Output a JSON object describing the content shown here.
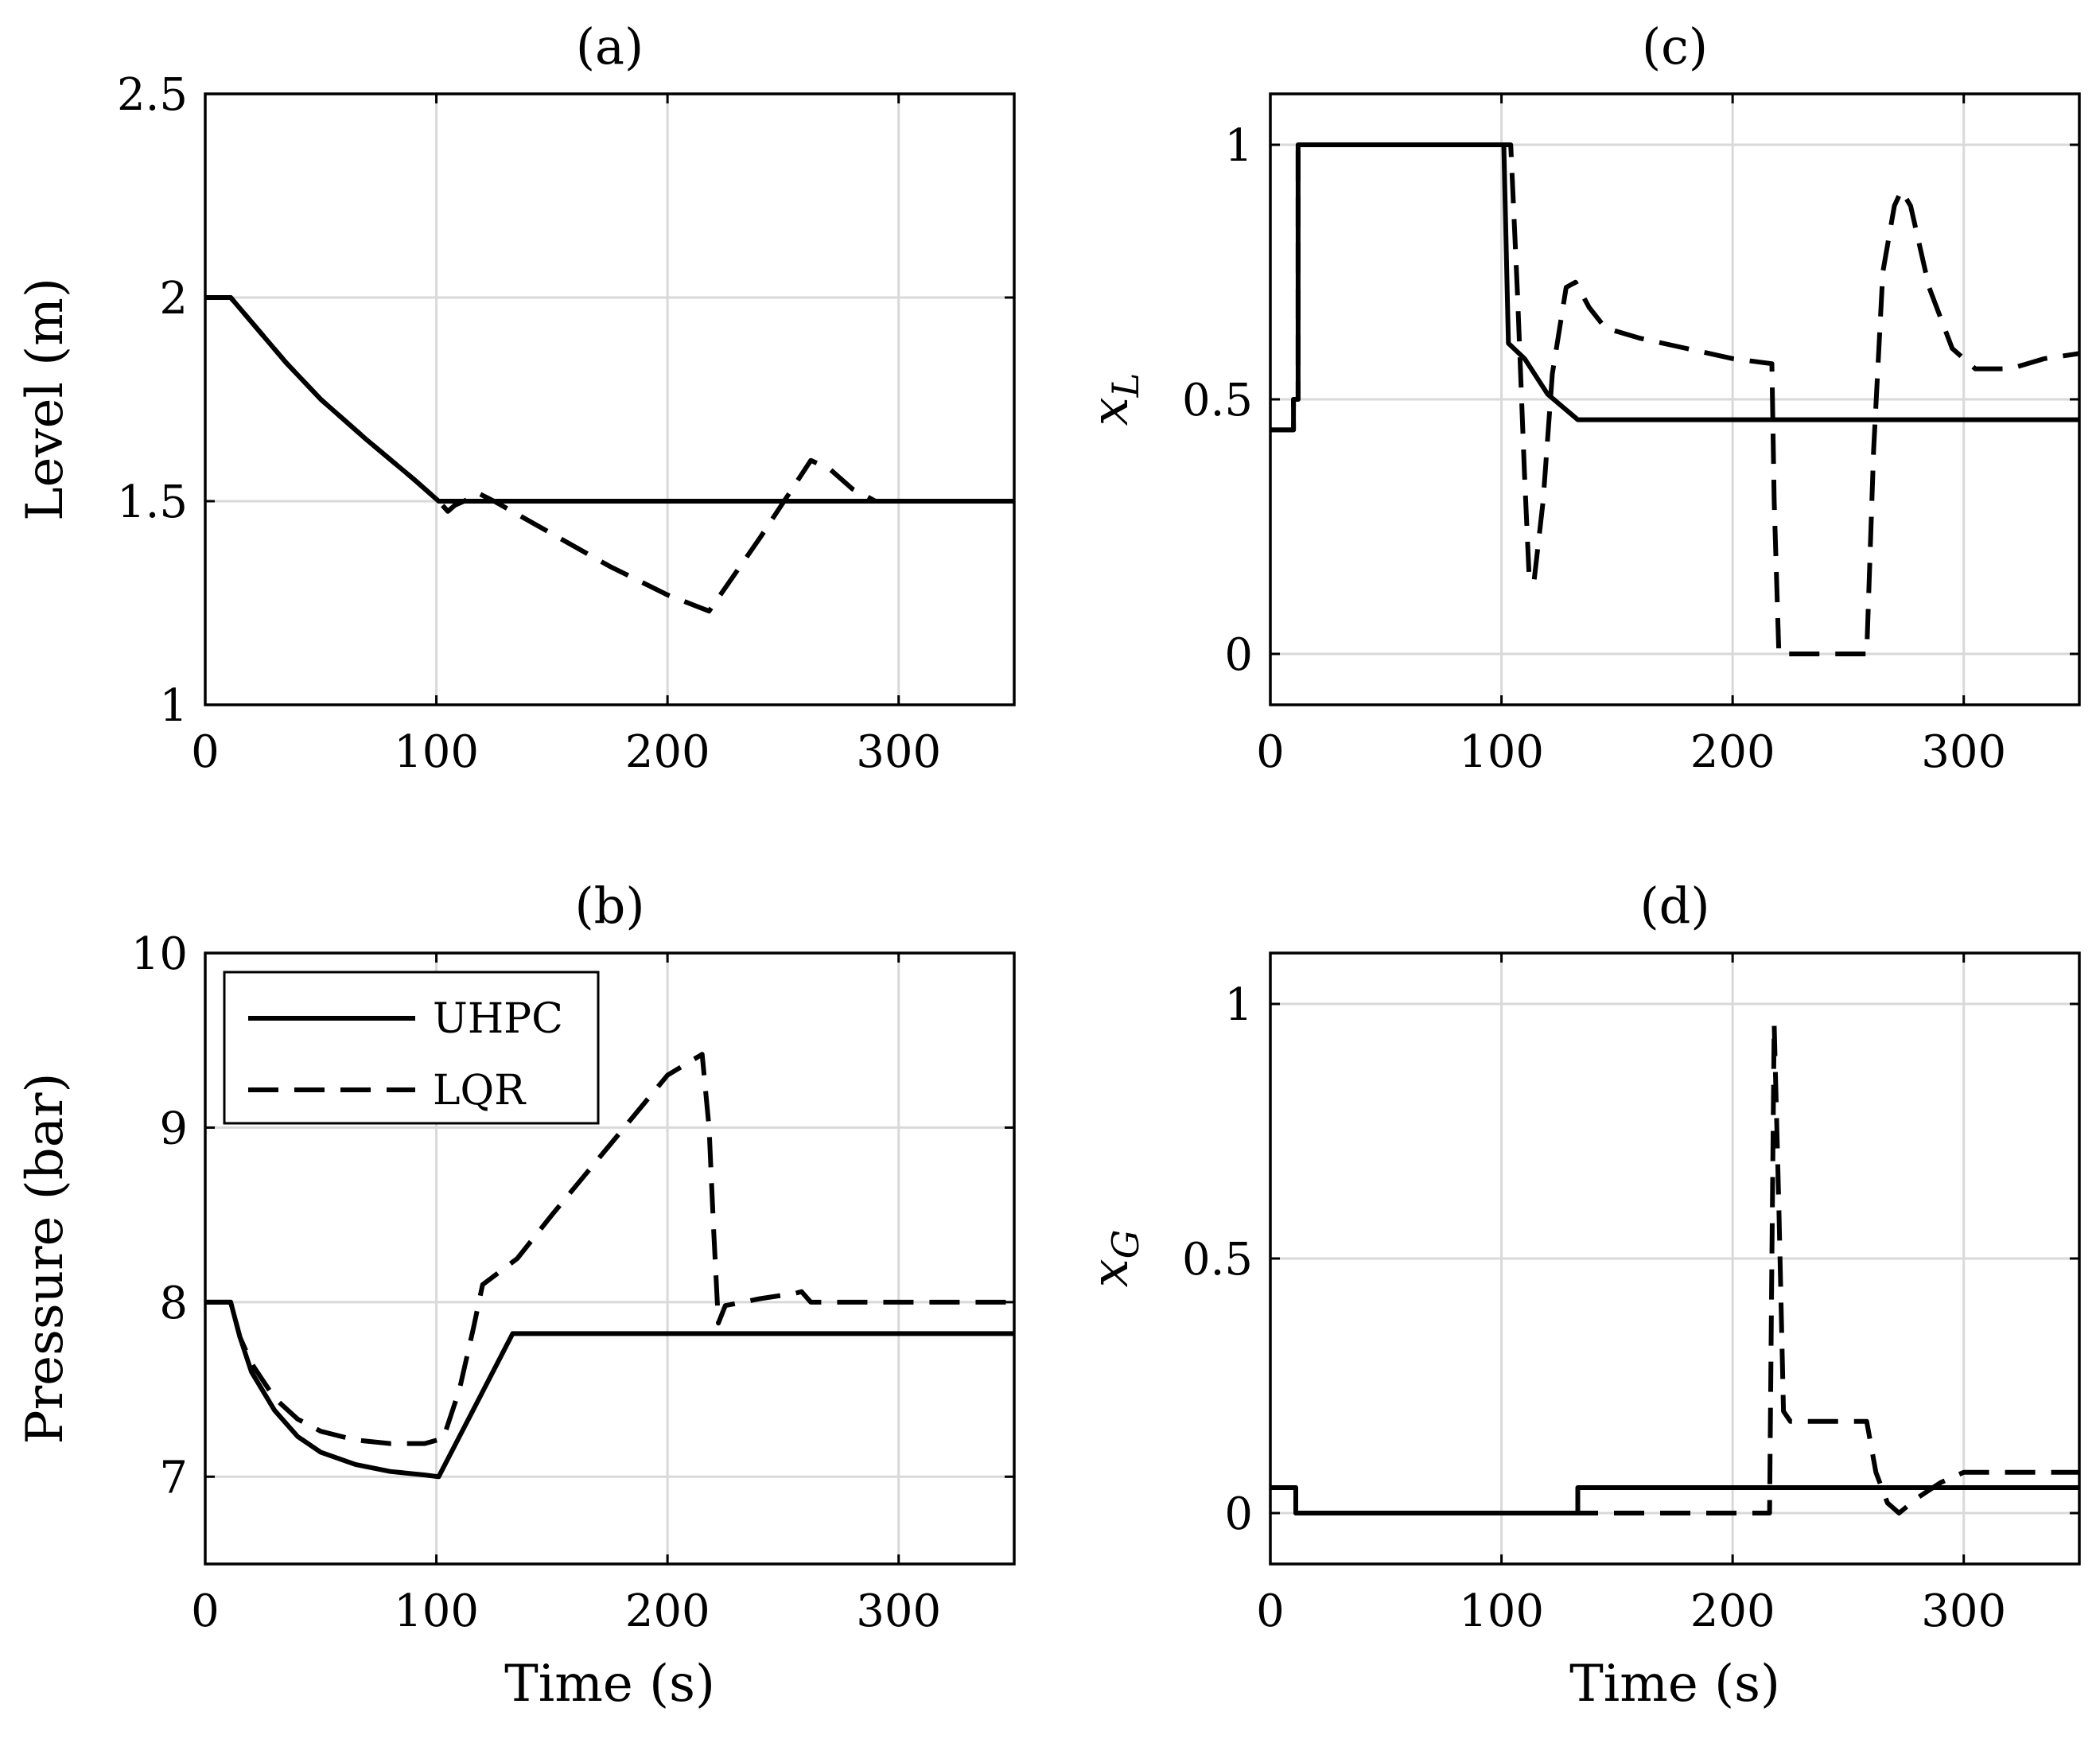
{
  "chart_data": [
    {
      "id": "a",
      "type": "line",
      "title": "(a)",
      "xlabel": "",
      "ylabel": "Level (m)",
      "ylabel_italic": false,
      "xlim": [
        0,
        350
      ],
      "ylim": [
        1,
        2.5
      ],
      "xticks": [
        0,
        100,
        200,
        300
      ],
      "yticks": [
        1,
        1.5,
        2,
        2.5
      ],
      "xtick_labels": [
        "0",
        "100",
        "200",
        "300"
      ],
      "ytick_labels": [
        "1",
        "1.5",
        "2",
        "2.5"
      ],
      "grid": true,
      "series": [
        {
          "name": "UHPC",
          "style": "solid",
          "x": [
            0,
            11,
            20,
            35,
            50,
            70,
            90,
            101,
            350
          ],
          "y": [
            2.0,
            2.0,
            1.94,
            1.84,
            1.75,
            1.65,
            1.555,
            1.5,
            1.5
          ]
        },
        {
          "name": "LQR",
          "style": "dashed",
          "x": [
            0,
            11,
            20,
            35,
            50,
            70,
            90,
            101,
            105,
            108,
            112,
            118,
            125,
            150,
            175,
            200,
            218,
            240,
            262,
            270,
            280,
            290,
            350
          ],
          "y": [
            2.0,
            2.0,
            1.94,
            1.84,
            1.75,
            1.65,
            1.555,
            1.5,
            1.475,
            1.49,
            1.5,
            1.52,
            1.5,
            1.42,
            1.34,
            1.27,
            1.23,
            1.41,
            1.6,
            1.58,
            1.53,
            1.5,
            1.5
          ]
        }
      ]
    },
    {
      "id": "b",
      "type": "line",
      "title": "(b)",
      "xlabel": "Time (s)",
      "ylabel": "Pressure (bar)",
      "ylabel_italic": false,
      "xlim": [
        0,
        350
      ],
      "ylim": [
        6.5,
        10
      ],
      "xticks": [
        0,
        100,
        200,
        300
      ],
      "yticks": [
        7,
        8,
        9,
        10
      ],
      "xtick_labels": [
        "0",
        "100",
        "200",
        "300"
      ],
      "ytick_labels": [
        "7",
        "8",
        "9",
        "10"
      ],
      "grid": true,
      "legend": {
        "location": "top-left",
        "entries": [
          {
            "label": "UHPC",
            "style": "solid"
          },
          {
            "label": "LQR",
            "style": "dashed"
          }
        ]
      },
      "series": [
        {
          "name": "UHPC",
          "style": "solid",
          "x": [
            0,
            11,
            15,
            20,
            30,
            40,
            50,
            65,
            80,
            95,
            101,
            133,
            350
          ],
          "y": [
            8.0,
            8.0,
            7.8,
            7.6,
            7.38,
            7.23,
            7.14,
            7.07,
            7.03,
            7.01,
            7.0,
            7.82,
            7.82
          ]
        },
        {
          "name": "LQR",
          "style": "dashed",
          "x": [
            0,
            11,
            15,
            20,
            30,
            40,
            50,
            65,
            80,
            95,
            103,
            110,
            116,
            120,
            130,
            135,
            150,
            175,
            200,
            215,
            218,
            220,
            222,
            225,
            240,
            255,
            258,
            262,
            350
          ],
          "y": [
            8.0,
            8.0,
            7.8,
            7.65,
            7.45,
            7.33,
            7.26,
            7.21,
            7.19,
            7.19,
            7.22,
            7.5,
            7.85,
            8.1,
            8.2,
            8.25,
            8.5,
            8.9,
            9.3,
            9.42,
            9.0,
            8.4,
            7.88,
            7.98,
            8.02,
            8.05,
            8.06,
            8.0,
            8.0
          ]
        }
      ]
    },
    {
      "id": "c",
      "type": "line",
      "title": "(c)",
      "xlabel": "",
      "ylabel": "xL",
      "ylabel_italic": true,
      "xlim": [
        0,
        350
      ],
      "ylim": [
        -0.1,
        1.1
      ],
      "xticks": [
        0,
        100,
        200,
        300
      ],
      "yticks": [
        0,
        0.5,
        1
      ],
      "xtick_labels": [
        "0",
        "100",
        "200",
        "300"
      ],
      "ytick_labels": [
        "0",
        "0.5",
        "1"
      ],
      "grid": true,
      "series": [
        {
          "name": "UHPC",
          "style": "solid",
          "x": [
            0,
            10,
            10,
            12,
            12,
            101,
            103,
            110,
            120,
            133,
            350
          ],
          "y": [
            0.44,
            0.44,
            0.5,
            0.5,
            1.0,
            1.0,
            0.61,
            0.58,
            0.51,
            0.46,
            0.46
          ]
        },
        {
          "name": "LQR",
          "style": "dashed",
          "x": [
            0,
            10,
            10,
            12,
            12,
            104,
            107,
            110,
            112,
            114,
            118,
            122,
            128,
            132,
            138,
            145,
            160,
            180,
            200,
            217,
            218,
            220,
            258,
            261,
            265,
            270,
            273,
            277,
            285,
            295,
            305,
            320,
            335,
            350
          ],
          "y": [
            0.44,
            0.44,
            0.5,
            0.5,
            1.0,
            1.0,
            0.7,
            0.35,
            0.15,
            0.14,
            0.3,
            0.55,
            0.72,
            0.73,
            0.68,
            0.64,
            0.62,
            0.6,
            0.58,
            0.57,
            0.3,
            0.0,
            0.0,
            0.4,
            0.75,
            0.88,
            0.91,
            0.88,
            0.72,
            0.6,
            0.56,
            0.56,
            0.58,
            0.59
          ]
        }
      ]
    },
    {
      "id": "d",
      "type": "line",
      "title": "(d)",
      "xlabel": "Time (s)",
      "ylabel": "xG",
      "ylabel_italic": true,
      "xlim": [
        0,
        350
      ],
      "ylim": [
        -0.1,
        1.1
      ],
      "xticks": [
        0,
        100,
        200,
        300
      ],
      "yticks": [
        0,
        0.5,
        1
      ],
      "xtick_labels": [
        "0",
        "100",
        "200",
        "300"
      ],
      "ytick_labels": [
        "0",
        "0.5",
        "1"
      ],
      "grid": true,
      "series": [
        {
          "name": "UHPC",
          "style": "solid",
          "x": [
            0,
            11,
            11,
            133,
            133,
            350
          ],
          "y": [
            0.05,
            0.05,
            0.0,
            0.0,
            0.05,
            0.05
          ]
        },
        {
          "name": "LQR",
          "style": "dashed",
          "x": [
            0,
            11,
            11,
            216,
            217,
            218,
            220,
            222,
            225,
            240,
            258,
            262,
            267,
            272,
            280,
            290,
            300,
            310,
            330,
            350
          ],
          "y": [
            0.05,
            0.05,
            0.0,
            0.0,
            0.5,
            0.96,
            0.6,
            0.2,
            0.18,
            0.18,
            0.18,
            0.08,
            0.02,
            0.0,
            0.03,
            0.06,
            0.08,
            0.08,
            0.08,
            0.08
          ]
        }
      ]
    }
  ]
}
